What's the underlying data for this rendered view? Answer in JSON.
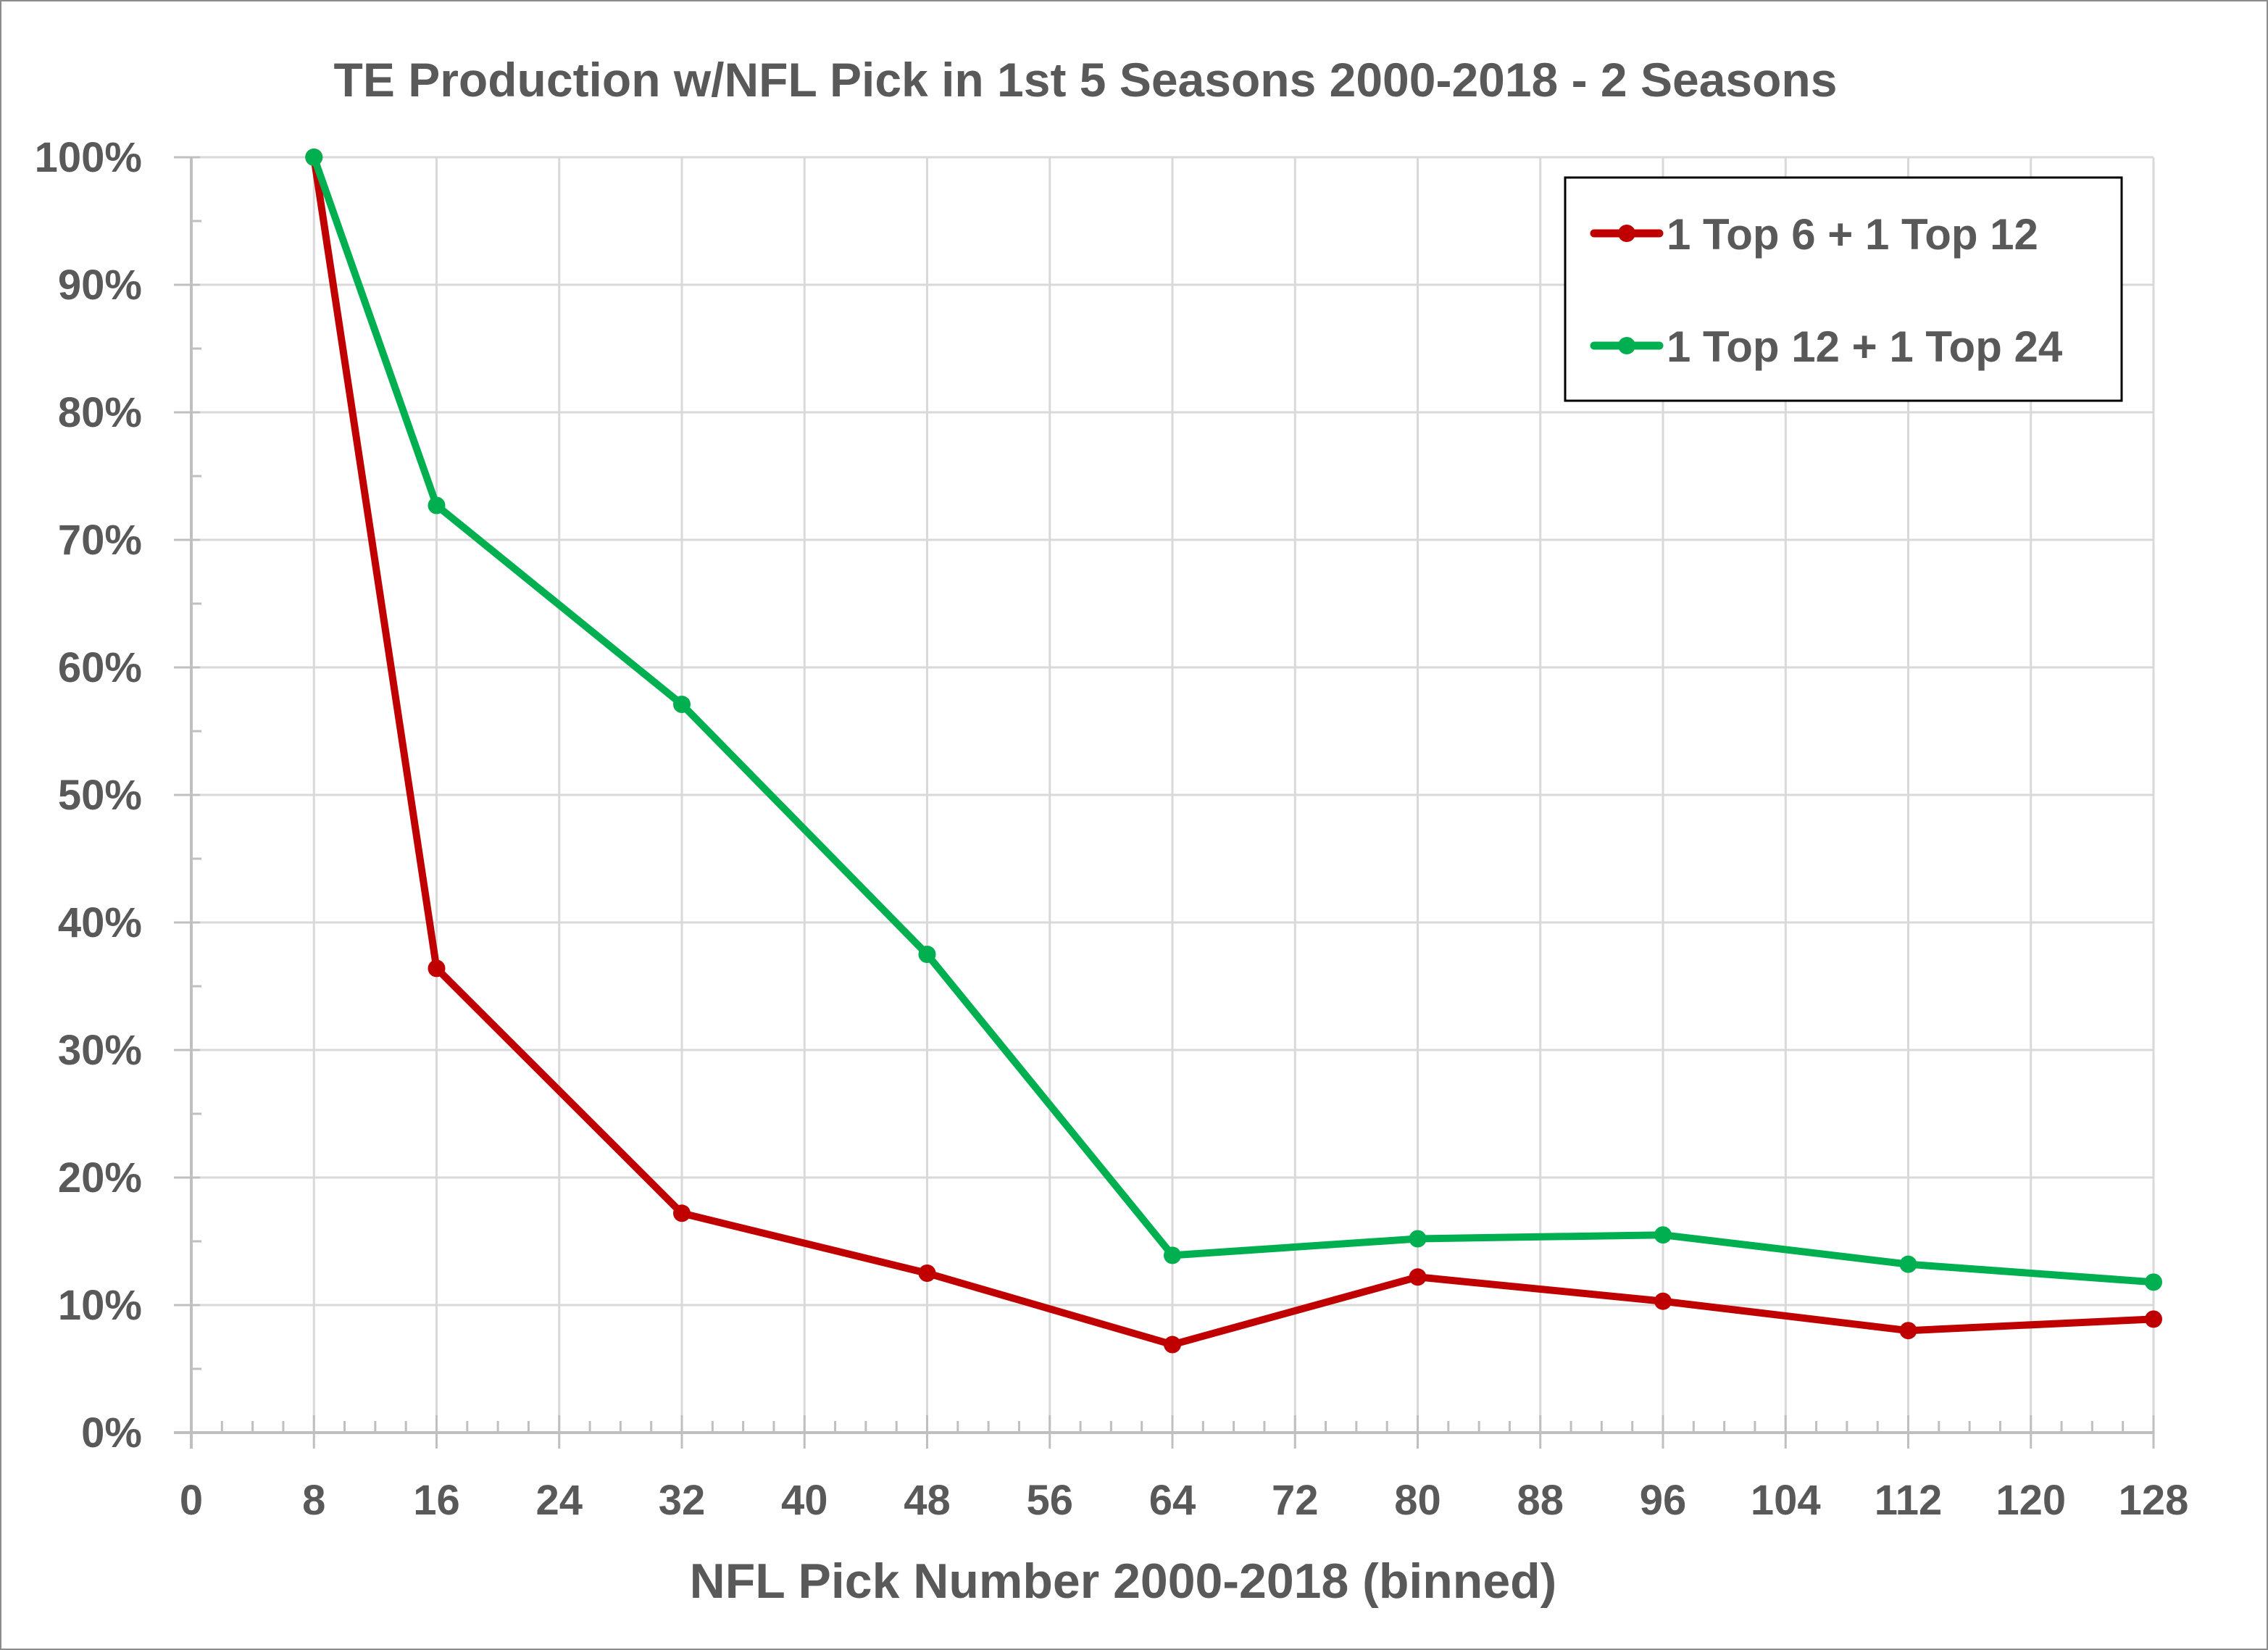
{
  "chart_data": {
    "type": "line",
    "title": "TE Production w/NFL Pick in 1st 5 Seasons 2000-2018 - 2 Seasons",
    "xlabel": "NFL Pick Number 2000-2018 (binned)",
    "ylabel": "",
    "xlim": [
      0,
      128
    ],
    "ylim": [
      0,
      1
    ],
    "x_ticks": [
      0,
      8,
      16,
      24,
      32,
      40,
      48,
      56,
      64,
      72,
      80,
      88,
      96,
      104,
      112,
      120,
      128
    ],
    "x_tick_labels": [
      "0",
      "8",
      "16",
      "24",
      "32",
      "40",
      "48",
      "56",
      "64",
      "72",
      "80",
      "88",
      "96",
      "104",
      "112",
      "120",
      "128"
    ],
    "y_ticks": [
      0,
      0.1,
      0.2,
      0.3,
      0.4,
      0.5,
      0.6,
      0.7,
      0.8,
      0.9,
      1.0
    ],
    "y_tick_labels": [
      "0%",
      "10%",
      "20%",
      "30%",
      "40%",
      "50%",
      "60%",
      "70%",
      "80%",
      "90%",
      "100%"
    ],
    "grid": true,
    "legend_position": "top-right",
    "x": [
      8,
      16,
      32,
      48,
      64,
      80,
      96,
      112,
      128
    ],
    "series": [
      {
        "name": "1 Top 6 + 1 Top 12",
        "color": "#c00000",
        "values": [
          1.0,
          0.364,
          0.172,
          0.125,
          0.069,
          0.122,
          0.103,
          0.08,
          0.089
        ]
      },
      {
        "name": "1 Top 12 + 1 Top 24",
        "color": "#00b050",
        "values": [
          1.0,
          0.727,
          0.571,
          0.375,
          0.139,
          0.152,
          0.155,
          0.132,
          0.118
        ]
      }
    ]
  }
}
